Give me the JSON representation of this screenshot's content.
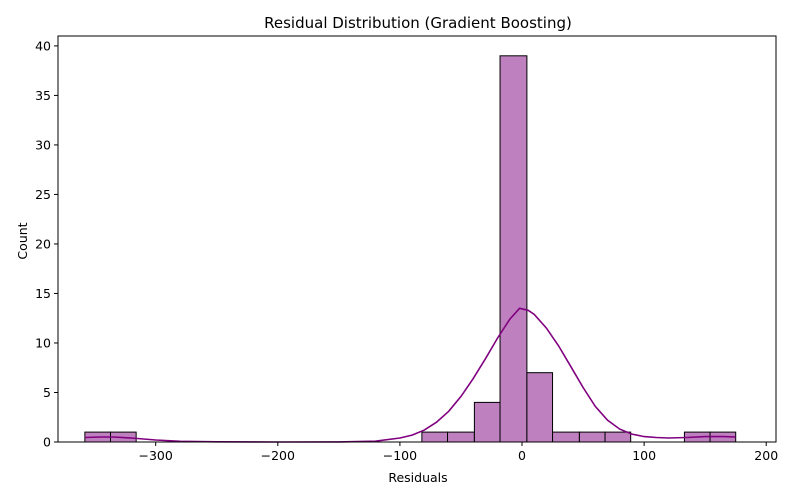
{
  "chart_data": {
    "type": "bar",
    "subtype": "histogram-with-kde",
    "title": "Residual Distribution (Gradient Boosting)",
    "xlabel": "Residuals",
    "ylabel": "Count",
    "xlim": [
      -380,
      208
    ],
    "ylim": [
      0,
      41
    ],
    "xticks": [
      -300,
      -200,
      -100,
      0,
      100,
      200
    ],
    "xtick_labels": [
      "−300",
      "−200",
      "−100",
      "0",
      "100",
      "200"
    ],
    "yticks": [
      0,
      5,
      10,
      15,
      20,
      25,
      30,
      35,
      40
    ],
    "bar_color": "#bf80bf",
    "edge_color": "#000000",
    "kde_color": "#800080",
    "grid": false,
    "bins": [
      {
        "x0": -358,
        "x1": -337,
        "count": 1
      },
      {
        "x0": -337,
        "x1": -316,
        "count": 1
      },
      {
        "x0": -82,
        "x1": -61,
        "count": 1
      },
      {
        "x0": -61,
        "x1": -39,
        "count": 1
      },
      {
        "x0": -39,
        "x1": -18,
        "count": 4
      },
      {
        "x0": -18,
        "x1": 4,
        "count": 39
      },
      {
        "x0": 4,
        "x1": 25,
        "count": 7
      },
      {
        "x0": 25,
        "x1": 47,
        "count": 1
      },
      {
        "x0": 47,
        "x1": 68,
        "count": 1
      },
      {
        "x0": 68,
        "x1": 89,
        "count": 1
      },
      {
        "x0": 133,
        "x1": 154,
        "count": 1
      },
      {
        "x0": 154,
        "x1": 175,
        "count": 1
      }
    ],
    "kde": {
      "x": [
        -358,
        -345,
        -335,
        -320,
        -300,
        -280,
        -250,
        -200,
        -150,
        -120,
        -100,
        -90,
        -80,
        -70,
        -60,
        -50,
        -40,
        -30,
        -20,
        -10,
        -2,
        5,
        10,
        20,
        30,
        40,
        50,
        60,
        70,
        80,
        90,
        100,
        110,
        120,
        135,
        150,
        165,
        175
      ],
      "y": [
        0.45,
        0.5,
        0.5,
        0.4,
        0.2,
        0.07,
        0.02,
        0.0,
        0.01,
        0.08,
        0.4,
        0.7,
        1.2,
        2.0,
        3.1,
        4.6,
        6.4,
        8.4,
        10.5,
        12.4,
        13.5,
        13.3,
        12.9,
        11.5,
        9.7,
        7.6,
        5.5,
        3.6,
        2.2,
        1.3,
        0.8,
        0.55,
        0.45,
        0.4,
        0.45,
        0.55,
        0.55,
        0.5
      ]
    }
  }
}
